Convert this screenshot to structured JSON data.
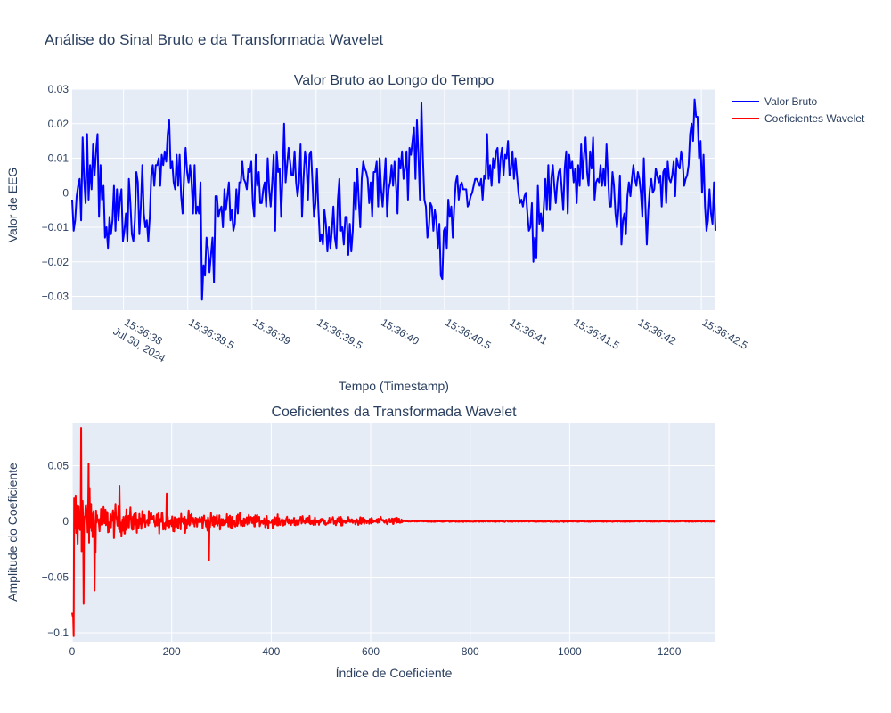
{
  "figure_title": "Análise do Sinal Bruto e da Transformada Wavelet",
  "legend": {
    "placement": "top-right",
    "items": [
      {
        "label": "Valor Bruto",
        "color": "#0000ff"
      },
      {
        "label": "Coeficientes Wavelet",
        "color": "#ff0000"
      }
    ]
  },
  "colors": {
    "plot_bg": "#e5ecf6",
    "grid": "#ffffff",
    "text": "#2a3f5f"
  },
  "chart_data": [
    {
      "type": "line",
      "title": "Valor Bruto ao Longo do Tempo",
      "xlabel": "Tempo (Timestamp)",
      "ylabel": "Valor de EEG",
      "x_start": "2024-07-30 15:36:37.60",
      "x_end": "2024-07-30 15:36:42.61",
      "x_ticks": [
        "15:36:38|Jul 30, 2024",
        "15:36:38.5",
        "15:36:39",
        "15:36:39.5",
        "15:36:40",
        "15:36:40.5",
        "15:36:41",
        "15:36:41.5",
        "15:36:42",
        "15:36:42.5"
      ],
      "y_ticks": [
        "0.03",
        "0.02",
        "0.01",
        "0",
        "−0.01",
        "−0.02",
        "−0.03"
      ],
      "ylim": [
        -0.034,
        0.03
      ],
      "grid": true,
      "series": [
        {
          "name": "Valor Bruto",
          "color": "#0000ff",
          "values": [
            -0.002,
            -0.011,
            -0.008,
            -0.001,
            0.002,
            0.004,
            -0.008,
            0.016,
            0.004,
            -0.003,
            0.017,
            -0.002,
            0.008,
            0.001,
            0.014,
            0.005,
            0.012,
            0.017,
            -0.007,
            0.008,
            -0.002,
            0.002,
            -0.013,
            -0.01,
            -0.016,
            -0.007,
            -0.012,
            -0.008,
            0.002,
            -0.011,
            0.001,
            -0.008,
            -0.002,
            0.001,
            -0.014,
            -0.011,
            -0.006,
            -0.014,
            0.004,
            -0.003,
            -0.012,
            -0.014,
            -0.008,
            0.006,
            0.003,
            -0.012,
            -0.004,
            0.008,
            -0.006,
            -0.01,
            -0.008,
            -0.014,
            -0.007,
            0.005,
            0.008,
            0.002,
            0.008,
            0.008,
            0.01,
            0.002,
            0.011,
            0.008,
            0.012,
            0.009,
            0.017,
            0.021,
            0.007,
            0.009,
            0.003,
            0.001,
            0.011,
            0.002,
            0.011,
            -0.001,
            -0.006,
            0.005,
            0.013,
            0.006,
            0.003,
            0.008,
            0.003,
            -0.006,
            0.008,
            -0.006,
            -0.004,
            -0.006,
            0.003,
            -0.031,
            -0.021,
            -0.024,
            -0.013,
            -0.016,
            -0.023,
            -0.018,
            -0.013,
            -0.026,
            -0.001,
            -0.001,
            -0.007,
            -0.005,
            -0.004,
            -0.01,
            0.001,
            -0.005,
            -0.001,
            0.003,
            -0.008,
            -0.005,
            -0.011,
            -0.009,
            0.001,
            -0.006,
            0.003,
            0.003,
            0.009,
            0.004,
            0.003,
            0.001,
            0.007,
            0.006,
            0.009,
            -0.003,
            -0.007,
            0.011,
            0.002,
            0.006,
            -0.003,
            -0.003,
            0.001,
            0.003,
            -0.004,
            0.01,
            0.001,
            -0.004,
            0.003,
            0.011,
            -0.011,
            0.012,
            0.006,
            0.007,
            -0.007,
            0.005,
            0.02,
            0.003,
            0.008,
            0.013,
            0.009,
            0.005,
            0.005,
            0.012,
            0.003,
            -0.001,
            0.003,
            0.014,
            -0.007,
            0.004,
            0.012,
            0.008,
            -0.002,
            0.011,
            0.012,
            0.003,
            -0.007,
            -0.003,
            0.007,
            -0.005,
            -0.014,
            -0.012,
            -0.015,
            -0.005,
            -0.009,
            -0.017,
            -0.01,
            -0.016,
            -0.011,
            -0.004,
            -0.013,
            -0.016,
            -0.002,
            0.004,
            -0.011,
            -0.01,
            -0.015,
            -0.007,
            -0.007,
            -0.018,
            -0.009,
            -0.017,
            -0.011,
            0.003,
            -0.005,
            0.007,
            -0.002,
            -0.01,
            0.004,
            0.009,
            0.007,
            0.006,
            0.004,
            -0.003,
            0.003,
            -0.007,
            0.006,
            0.006,
            0.009,
            -0.004,
            0.01,
            0.001,
            -0.004,
            0.003,
            0.01,
            -0.007,
            0.001,
            0.003,
            0.008,
            0.002,
            0.009,
            0.002,
            -0.006,
            0.01,
            0.007,
            0.012,
            0.004,
            0.007,
            0.012,
            -0.002,
            0.013,
            0.011,
            0.015,
            0.019,
            0.004,
            0.021,
            0.011,
            -0.002,
            0.026,
            0.01,
            -0.002,
            -0.004,
            -0.013,
            -0.01,
            -0.003,
            -0.004,
            -0.011,
            -0.005,
            -0.008,
            -0.016,
            -0.009,
            -0.024,
            -0.025,
            -0.011,
            -0.01,
            -0.016,
            -0.002,
            -0.007,
            -0.004,
            -0.013,
            -0.004,
            0.003,
            0.005,
            -0.002,
            0.002,
            0.003,
            0.001,
            0.001,
            0.001,
            -0.004,
            -0.003,
            -0.001,
            0,
            0.002,
            0.004,
            0.004,
            0.003,
            0.002,
            0.004,
            -0.002,
            0.005,
            0.004,
            0.017,
            0.004,
            0.008,
            0.002,
            0.01,
            0.007,
            0.012,
            0.013,
            0.003,
            0.01,
            0.013,
            0.005,
            0.011,
            0.01,
            0.015,
            0.005,
            0.007,
            0.012,
            0.004,
            0.01,
            0.005,
            0,
            -0.003,
            -0.002,
            -0.004,
            -0.001,
            0,
            -0.006,
            -0.011,
            -0.01,
            -0.003,
            -0.02,
            -0.013,
            -0.019,
            0.002,
            -0.009,
            -0.006,
            -0.011,
            -0.004,
            0.004,
            -0.005,
            0.008,
            -0.005,
            0.004,
            0.008,
            0.002,
            -0.003,
            0.003,
            0.006,
            0.007,
            0.001,
            -0.005,
            0.007,
            0.012,
            -0.006,
            0.011,
            0.007,
            0.009,
            0.003,
            0.007,
            -0.003,
            0.008,
            0.002,
            0.014,
            0.004,
            0.011,
            0.016,
            0.006,
            0.002,
            0.012,
            0.007,
            0.016,
            -0.002,
            0.003,
            0.004,
            0.003,
            0.008,
            0.002,
            0.007,
            0.002,
            0.014,
            0.005,
            -0.004,
            -0.004,
            0.006,
            0.002,
            -0.006,
            -0.01,
            -0.005,
            0.005,
            -0.015,
            -0.008,
            -0.006,
            -0.012,
            -0.001,
            0.003,
            -0.001,
            0.004,
            0.008,
            0.004,
            0.002,
            0.006,
            0.004,
            0,
            -0.007,
            0.01,
            -0.003,
            -0.015,
            -0.005,
            0.001,
            0.004,
            0,
            0.001,
            0.007,
            0.005,
            0.003,
            0.005,
            -0.004,
            0.006,
            0.007,
            -0.003,
            0.009,
            0.004,
            0.003,
            0.005,
            0.009,
            -0.001,
            0.01,
            0.008,
            0.007,
            0.012,
            0.009,
            0.002,
            0.004,
            0.005,
            0.008,
            0.017,
            0.02,
            0.015,
            0.027,
            0.022,
            0.022,
            0.01,
            0.015,
            0,
            0.011,
            -0.004,
            -0.011,
            -0.008,
            0.001,
            -0.006,
            -0.009,
            0.003,
            -0.011
          ]
        }
      ]
    },
    {
      "type": "line",
      "title": "Coeficientes da Transformada Wavelet",
      "xlabel": "Índice de Coeficiente",
      "ylabel": "Amplitude do Coeficiente",
      "xlim": [
        0,
        1293
      ],
      "x_ticks": [
        0,
        200,
        400,
        600,
        800,
        1000,
        1200
      ],
      "y_ticks": [
        "0.05",
        "0",
        "−0.05",
        "−0.1"
      ],
      "ylim": [
        -0.108,
        0.088
      ],
      "grid": true,
      "envelope": [
        [
          0,
          0.09
        ],
        [
          60,
          0.035
        ],
        [
          150,
          0.02
        ],
        [
          250,
          0.017
        ],
        [
          400,
          0.011
        ],
        [
          550,
          0.008
        ],
        [
          660,
          0.007
        ],
        [
          665,
          0.0012
        ],
        [
          1293,
          0.001
        ]
      ],
      "notable_points": [
        [
          0,
          -0.082
        ],
        [
          3,
          -0.103
        ],
        [
          5,
          0.01
        ],
        [
          18,
          0.084
        ],
        [
          23,
          -0.074
        ],
        [
          33,
          0.052
        ],
        [
          45,
          -0.062
        ],
        [
          95,
          0.032
        ],
        [
          190,
          0.025
        ],
        [
          275,
          -0.035
        ]
      ],
      "series": [
        {
          "name": "Coeficientes Wavelet",
          "color": "#ff0000"
        }
      ]
    }
  ]
}
